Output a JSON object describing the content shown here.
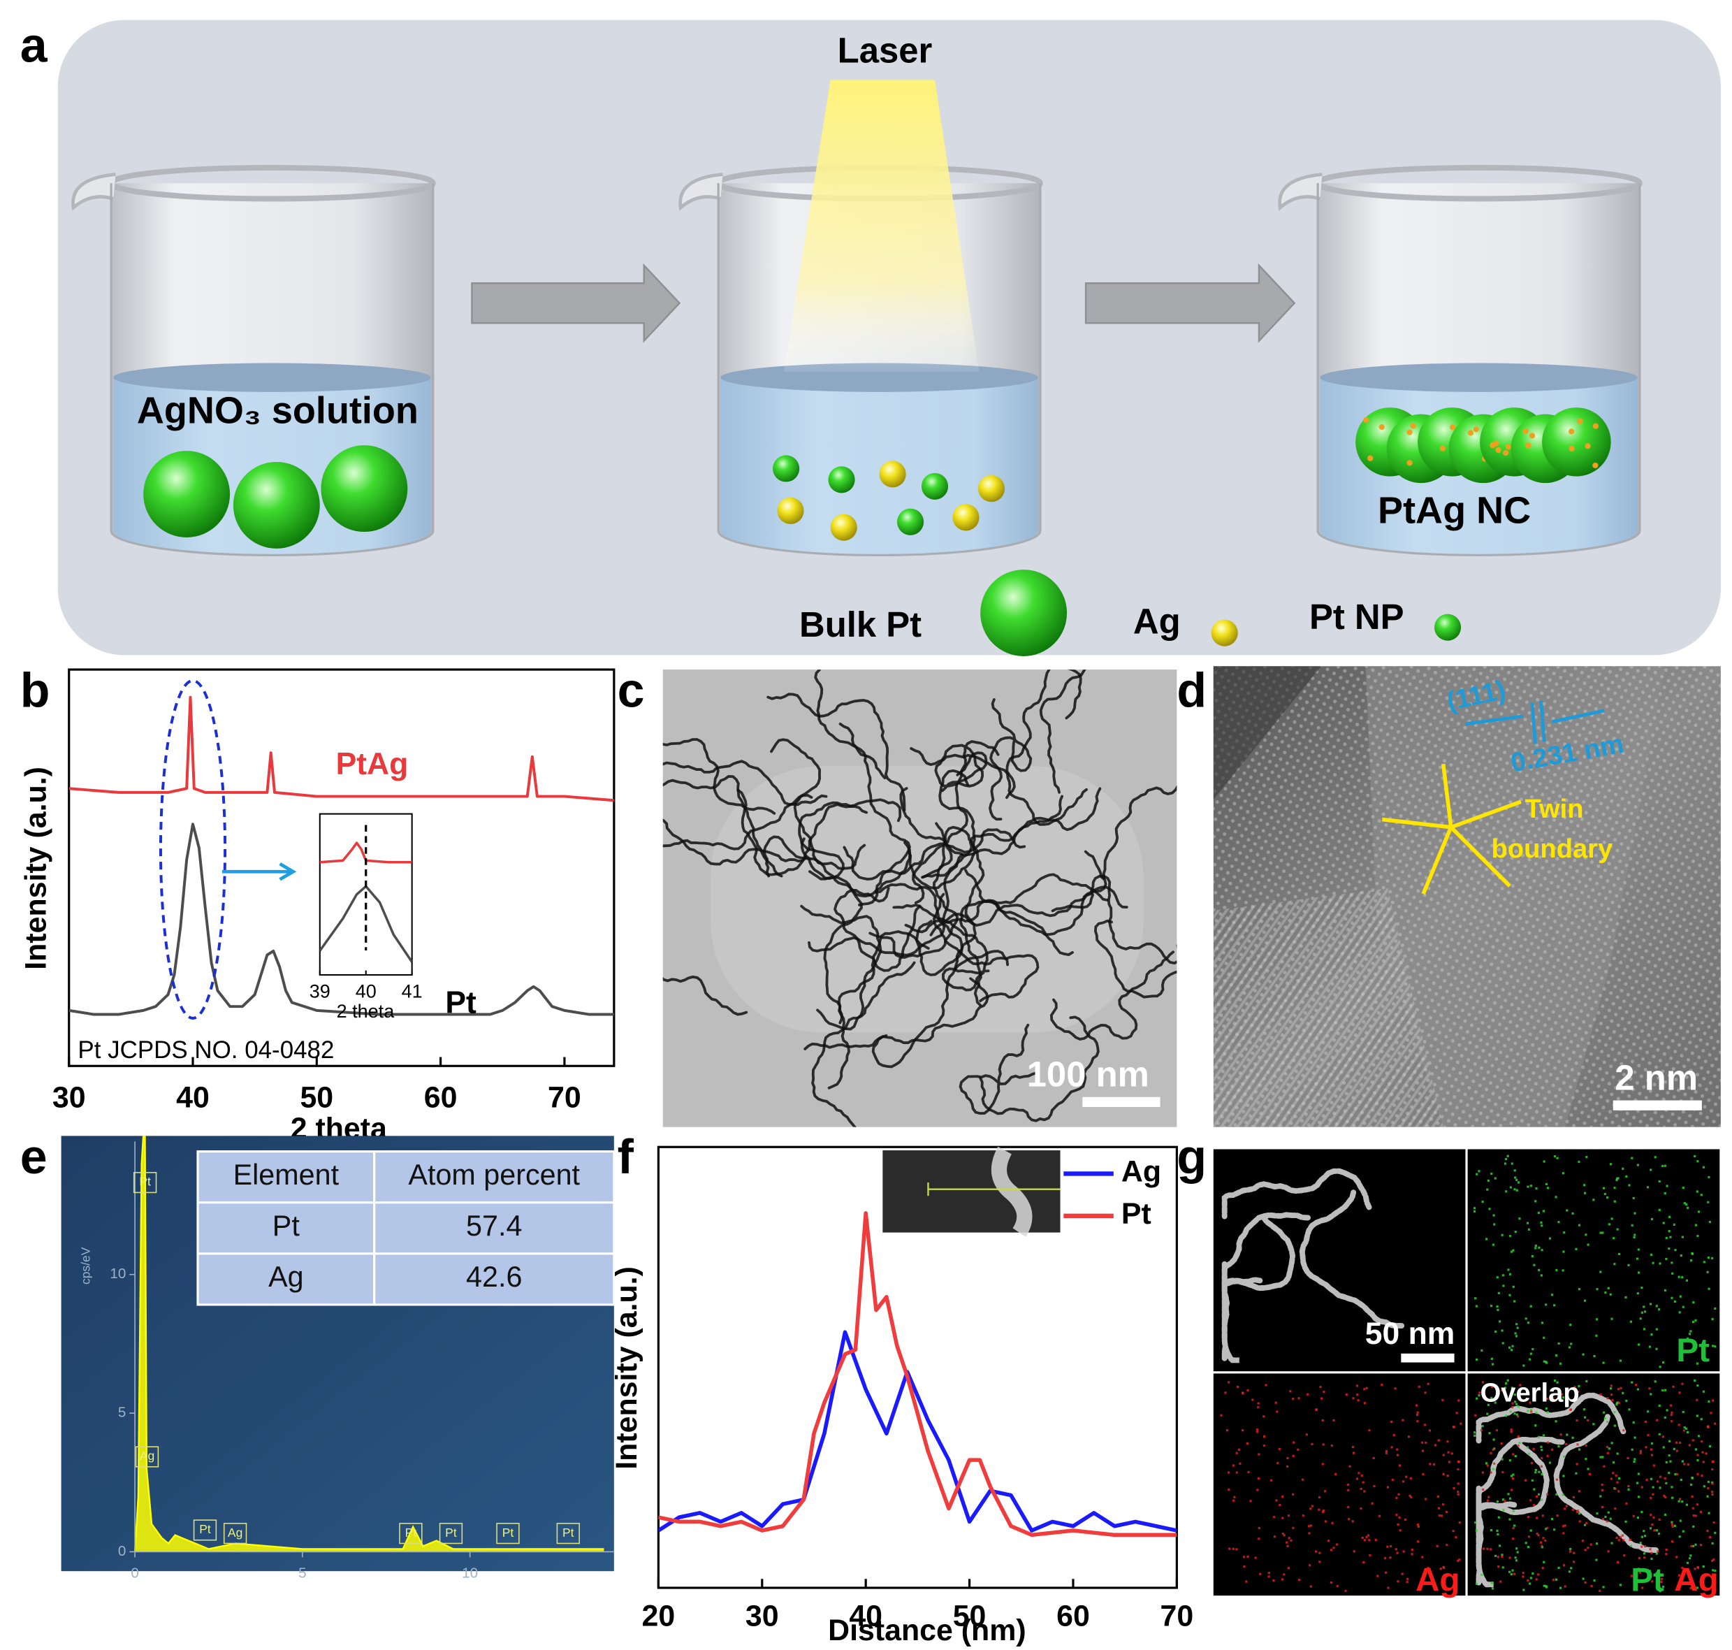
{
  "panel_labels": [
    "a",
    "b",
    "c",
    "d",
    "e",
    "f",
    "g"
  ],
  "scheme": {
    "laser": "Laser",
    "solution": "AgNO₃ solution",
    "product": "PtAg NC",
    "legend": [
      "Bulk Pt",
      "Ag",
      "Pt NP"
    ]
  },
  "chart_data": [
    {
      "type": "line",
      "x_label": "2 theta",
      "y_label": "Intensity (a.u.)",
      "xlim": [
        30,
        74
      ],
      "xticks": [
        30,
        40,
        50,
        60,
        70
      ],
      "ylim": [
        0,
        100
      ],
      "annotation": "Pt JCPDS NO. 04-0482",
      "series": [
        {
          "name": "PtAg",
          "color": "#e8393c",
          "x": [
            30,
            34,
            38,
            39.5,
            39.8,
            40.1,
            41,
            46,
            46.3,
            46.6,
            50,
            60,
            67,
            67.4,
            67.8,
            70,
            74
          ],
          "values": [
            70,
            69,
            69,
            70,
            93,
            70,
            69,
            69,
            79,
            69,
            68,
            68,
            68,
            78,
            68,
            68,
            67
          ]
        },
        {
          "name": "Pt",
          "color": "#4d4d4d",
          "x": [
            30,
            32,
            34,
            36,
            37,
            38,
            38.5,
            39,
            39.5,
            40,
            40.5,
            41,
            41.5,
            42,
            43,
            44,
            45,
            45.5,
            46,
            46.5,
            47,
            47.5,
            48,
            50,
            55,
            60,
            64,
            65,
            66,
            67,
            67.5,
            68,
            68.5,
            69,
            70,
            72,
            74
          ],
          "values": [
            14,
            13,
            13,
            14,
            15,
            18,
            23,
            35,
            52,
            61,
            55,
            40,
            26,
            19,
            15,
            15,
            18,
            23,
            28,
            29,
            25,
            19,
            16,
            14,
            13,
            13,
            13,
            14,
            16,
            19,
            20,
            19,
            17,
            15,
            14,
            13,
            13
          ]
        }
      ]
    },
    {
      "type": "line",
      "x_label": "2 theta",
      "xlim": [
        39,
        41
      ],
      "xticks": [
        39,
        40,
        41
      ],
      "ylim": [
        0,
        100
      ],
      "vline": 40,
      "series": [
        {
          "color": "#e8393c",
          "x": [
            39,
            39.5,
            39.7,
            39.8,
            39.9,
            40,
            40.5,
            41
          ],
          "values": [
            70,
            71,
            78,
            82,
            78,
            71,
            70,
            70
          ]
        },
        {
          "color": "#4d4d4d",
          "x": [
            39,
            39.5,
            39.8,
            40,
            40.3,
            40.6,
            41
          ],
          "values": [
            15,
            35,
            50,
            55,
            45,
            25,
            8
          ]
        }
      ]
    },
    {
      "type": "area",
      "y_label": "cps/eV",
      "xlim": [
        -2.2,
        14.3
      ],
      "xticks": [
        0,
        5,
        10
      ],
      "ylim": [
        -0.7,
        15
      ],
      "yticks": [
        0,
        5,
        10
      ],
      "color": "#ffff00",
      "x": [
        0,
        0.1,
        0.2,
        0.25,
        0.3,
        0.35,
        0.5,
        0.8,
        1,
        1.2,
        2,
        2.2,
        3,
        5,
        8,
        8.3,
        8.6,
        9,
        9.5,
        11,
        12,
        13,
        14
      ],
      "values": [
        0,
        2,
        14,
        15,
        15,
        3,
        1,
        0.5,
        0.3,
        0.6,
        0.2,
        0.1,
        0.3,
        0.1,
        0.1,
        0.9,
        0.2,
        0.4,
        0.1,
        0.1,
        0.1,
        0.1,
        0.1
      ],
      "peak_labels": [
        {
          "label": "Pt",
          "x": 0.27
        },
        {
          "label": "Ag",
          "x": 0.33
        },
        {
          "label": "Pt",
          "x": 2.06
        },
        {
          "label": "Ag",
          "x": 2.96
        },
        {
          "label": "Pt",
          "x": 8.2
        },
        {
          "label": "Pt",
          "x": 9.4
        },
        {
          "label": "Pt",
          "x": 11.1
        },
        {
          "label": "Pt",
          "x": 12.9
        }
      ]
    },
    {
      "type": "line",
      "x_label": "Distance (nm)",
      "y_label": "Intensity (a.u.)",
      "xlim": [
        20,
        70
      ],
      "xticks": [
        20,
        30,
        40,
        50,
        60,
        70
      ],
      "ylim": [
        0,
        100
      ],
      "series": [
        {
          "name": "Ag",
          "color": "#1a1aff",
          "x": [
            20,
            22,
            24,
            26,
            28,
            30,
            32,
            34,
            36,
            38,
            40,
            42,
            44,
            46,
            48,
            50,
            52,
            54,
            56,
            58,
            60,
            62,
            64,
            66,
            68,
            70
          ],
          "values": [
            13,
            16,
            17,
            15,
            17,
            14,
            19,
            20,
            35,
            58,
            45,
            35,
            49,
            38,
            29,
            15,
            22,
            21,
            13,
            15,
            14,
            17,
            14,
            15,
            14,
            13
          ]
        },
        {
          "name": "Pt",
          "color": "#f03c3c",
          "x": [
            20,
            22,
            24,
            26,
            28,
            30,
            32,
            34,
            35,
            36,
            38,
            39,
            40,
            41,
            42,
            43,
            44,
            46,
            48,
            50,
            51,
            52,
            54,
            56,
            60,
            64,
            68,
            70
          ],
          "values": [
            16,
            15,
            15,
            14,
            15,
            13,
            14,
            20,
            35,
            42,
            53,
            54,
            85,
            63,
            66,
            55,
            48,
            31,
            18,
            29,
            29,
            23,
            14,
            12,
            13,
            12,
            12,
            12
          ]
        }
      ]
    }
  ],
  "eds_table": {
    "header": [
      "Element",
      "Atom percent"
    ],
    "rows": [
      [
        "Pt",
        "57.4"
      ],
      [
        "Ag",
        "42.6"
      ]
    ]
  },
  "tem": {
    "scale_bar": "100 nm"
  },
  "hrtem": {
    "plane": "(111)",
    "spacing": "0.231 nm",
    "annotation": [
      "Twin",
      "boundary"
    ],
    "scale_bar": "2 nm"
  },
  "mapping": {
    "scale_bar": "50 nm",
    "pt": "Pt",
    "ag": "Ag",
    "overlap": "Overlap",
    "overlap_labels": [
      "Pt",
      "Ag"
    ]
  }
}
